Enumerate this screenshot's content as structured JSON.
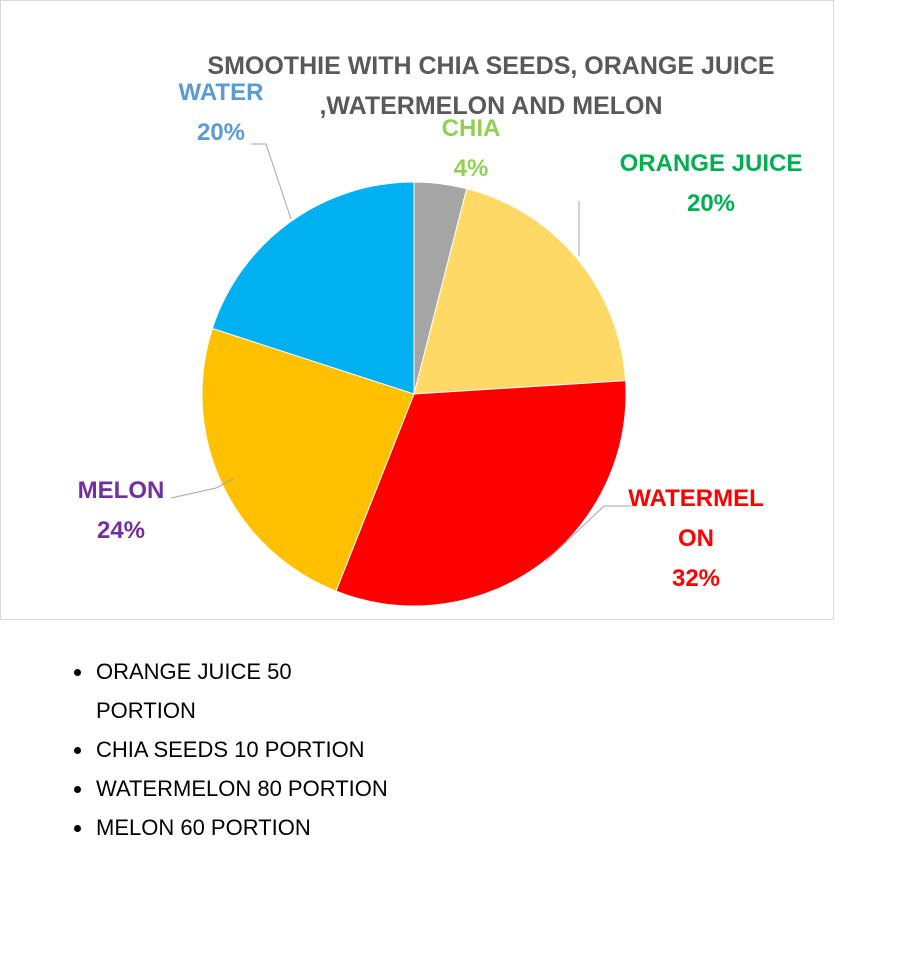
{
  "chart_data": {
    "type": "pie",
    "title": "SMOOTHIE WITH CHIA SEEDS, ORANGE JUICE ,WATERMELON AND MELON",
    "categories": [
      "CHIA",
      "ORANGE JUICE",
      "WATERMELON",
      "MELON",
      "WATER"
    ],
    "values": [
      4,
      20,
      32,
      24,
      20
    ],
    "value_labels": [
      "4%",
      "20%",
      "32%",
      "24%",
      "20%"
    ],
    "colors": [
      "#a5a5a5",
      "#ffd966",
      "#ff0000",
      "#ffc000",
      "#00b0f0"
    ],
    "label_colors": [
      "#92d050",
      "#00b050",
      "#ff0000",
      "#7030a0",
      "#5b9bd5"
    ]
  },
  "list": [
    "ORANGE JUICE 50 PORTION",
    "CHIA SEEDS 10 PORTION",
    "WATERMELON 80 PORTION",
    "MELON 60 PORTION"
  ]
}
